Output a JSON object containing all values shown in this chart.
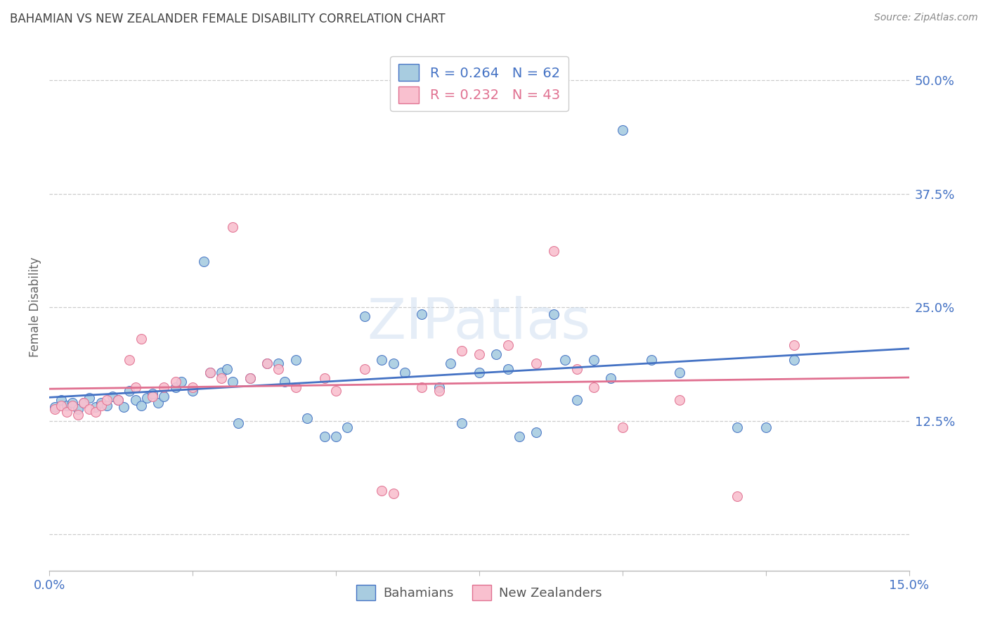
{
  "title": "BAHAMIAN VS NEW ZEALANDER FEMALE DISABILITY CORRELATION CHART",
  "source": "Source: ZipAtlas.com",
  "ylabel": "Female Disability",
  "yticks": [
    0.0,
    0.125,
    0.25,
    0.375,
    0.5
  ],
  "ytick_labels": [
    "",
    "12.5%",
    "25.0%",
    "37.5%",
    "50.0%"
  ],
  "xmin": 0.0,
  "xmax": 0.15,
  "ymin": -0.04,
  "ymax": 0.54,
  "bahamian_R": 0.264,
  "bahamian_N": 62,
  "nz_R": 0.232,
  "nz_N": 43,
  "bahamian_color": "#a8cce0",
  "nz_color": "#f9c0cf",
  "bahamian_line_color": "#4472c4",
  "nz_line_color": "#e07090",
  "title_color": "#404040",
  "axis_label_color": "#4472c4",
  "grid_color": "#cccccc",
  "bahamian_x": [
    0.001,
    0.002,
    0.003,
    0.004,
    0.005,
    0.006,
    0.007,
    0.008,
    0.009,
    0.01,
    0.011,
    0.012,
    0.013,
    0.014,
    0.015,
    0.016,
    0.017,
    0.018,
    0.019,
    0.02,
    0.022,
    0.023,
    0.025,
    0.027,
    0.028,
    0.03,
    0.031,
    0.032,
    0.033,
    0.035,
    0.038,
    0.04,
    0.041,
    0.043,
    0.045,
    0.048,
    0.05,
    0.052,
    0.055,
    0.058,
    0.06,
    0.062,
    0.065,
    0.068,
    0.07,
    0.072,
    0.075,
    0.078,
    0.08,
    0.082,
    0.085,
    0.088,
    0.09,
    0.092,
    0.095,
    0.098,
    0.1,
    0.105,
    0.11,
    0.12,
    0.125,
    0.13
  ],
  "bahamian_y": [
    0.14,
    0.148,
    0.142,
    0.145,
    0.138,
    0.145,
    0.15,
    0.14,
    0.145,
    0.142,
    0.152,
    0.148,
    0.14,
    0.158,
    0.148,
    0.142,
    0.15,
    0.155,
    0.145,
    0.152,
    0.162,
    0.168,
    0.158,
    0.3,
    0.178,
    0.178,
    0.182,
    0.168,
    0.122,
    0.172,
    0.188,
    0.188,
    0.168,
    0.192,
    0.128,
    0.108,
    0.108,
    0.118,
    0.24,
    0.192,
    0.188,
    0.178,
    0.242,
    0.162,
    0.188,
    0.122,
    0.178,
    0.198,
    0.182,
    0.108,
    0.112,
    0.242,
    0.192,
    0.148,
    0.192,
    0.172,
    0.445,
    0.192,
    0.178,
    0.118,
    0.118,
    0.192
  ],
  "nz_x": [
    0.001,
    0.002,
    0.003,
    0.004,
    0.005,
    0.006,
    0.007,
    0.008,
    0.009,
    0.01,
    0.012,
    0.014,
    0.015,
    0.016,
    0.018,
    0.02,
    0.022,
    0.025,
    0.028,
    0.03,
    0.032,
    0.035,
    0.038,
    0.04,
    0.043,
    0.048,
    0.05,
    0.055,
    0.058,
    0.06,
    0.065,
    0.068,
    0.072,
    0.075,
    0.08,
    0.085,
    0.088,
    0.092,
    0.095,
    0.1,
    0.11,
    0.12,
    0.13
  ],
  "nz_y": [
    0.138,
    0.142,
    0.135,
    0.142,
    0.132,
    0.145,
    0.138,
    0.135,
    0.142,
    0.148,
    0.148,
    0.192,
    0.162,
    0.215,
    0.152,
    0.162,
    0.168,
    0.162,
    0.178,
    0.172,
    0.338,
    0.172,
    0.188,
    0.182,
    0.162,
    0.172,
    0.158,
    0.182,
    0.048,
    0.045,
    0.162,
    0.158,
    0.202,
    0.198,
    0.208,
    0.188,
    0.312,
    0.182,
    0.162,
    0.118,
    0.148,
    0.042,
    0.208
  ]
}
